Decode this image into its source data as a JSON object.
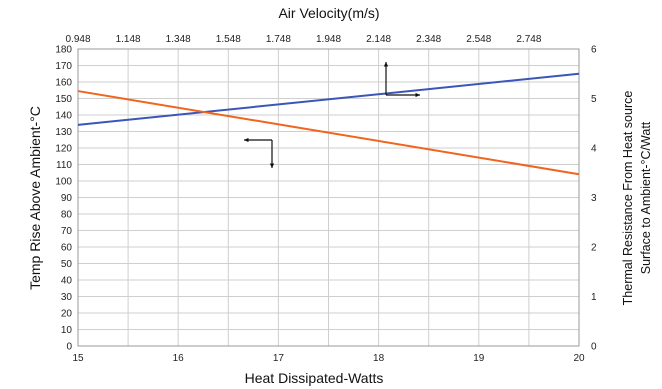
{
  "chart_data": {
    "type": "line",
    "title": "",
    "xlabel": "Heat Dissipated-Watts",
    "x2label": "Air Velocity(m/s)",
    "ylabel": "Temp Rise Above Ambient-°C",
    "y2label_line1": "Thermal Resistance From Heat source",
    "y2label_line2": "Surface to Ambient-°C/Watt",
    "xlim": [
      15,
      20
    ],
    "x2lim": [
      0.948,
      2.948
    ],
    "ylim": [
      0,
      180
    ],
    "y2lim": [
      0,
      6
    ],
    "x_ticks": [
      "15",
      "16",
      "17",
      "18",
      "19",
      "20"
    ],
    "x2_ticks": [
      "0.948",
      "1.148",
      "1.348",
      "1.548",
      "1.748",
      "1.948",
      "2.148",
      "2.348",
      "2.548",
      "2.748"
    ],
    "y_ticks": [
      "0",
      "10",
      "20",
      "30",
      "40",
      "50",
      "60",
      "70",
      "80",
      "90",
      "100",
      "110",
      "120",
      "130",
      "140",
      "150",
      "160",
      "170",
      "180"
    ],
    "y2_ticks": [
      "0",
      "1",
      "2",
      "3",
      "4",
      "5",
      "6"
    ],
    "grid": true,
    "series": [
      {
        "axis": "x-bottom / y-left",
        "color": "#3b55b8",
        "x": [
          15,
          20
        ],
        "y": [
          134,
          165
        ]
      },
      {
        "axis": "x-top / y-right",
        "color": "#f0641e",
        "x": [
          0.948,
          2.948
        ],
        "y": [
          5.15,
          3.47
        ]
      }
    ]
  }
}
